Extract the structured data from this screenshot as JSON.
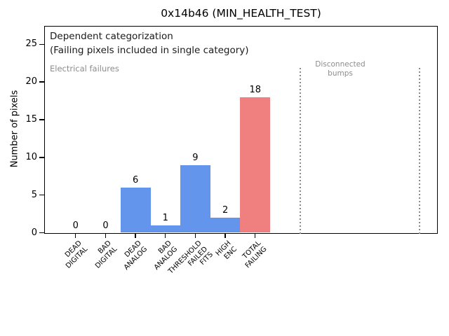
{
  "chart_data": {
    "type": "bar",
    "title": "0x14b46 (MIN_HEALTH_TEST)",
    "xlabel": "",
    "ylabel": "Number of pixels",
    "categories": [
      "DEAD\nDIGITAL",
      "BAD\nDIGITAL",
      "DEAD\nANALOG",
      "BAD\nANALOG",
      "THRESHOLD\nFAILED\nFITS",
      "HIGH\nENC",
      "TOTAL\nFAILING"
    ],
    "values": [
      0,
      0,
      6,
      1,
      9,
      2,
      18
    ],
    "bar_labels": [
      "0",
      "0",
      "6",
      "1",
      "9",
      "2",
      "18"
    ],
    "bar_colors": [
      "#6495ed",
      "#6495ed",
      "#6495ed",
      "#6495ed",
      "#6495ed",
      "#6495ed",
      "#f08080"
    ],
    "yticks": [
      0,
      5,
      10,
      15,
      20,
      25
    ],
    "ylim": [
      0,
      27.4
    ],
    "xlim": [
      -1.05,
      12.1
    ],
    "grid": false,
    "legend": null,
    "annotations": [
      {
        "id": "dependent-categorization",
        "text": "Dependent categorization\n(Failing pixels included in single category)",
        "color": "#1a1a1a"
      },
      {
        "id": "electrical-failures",
        "text": "Electrical failures",
        "color": "#8c8c8c"
      },
      {
        "id": "disconnected-bumps",
        "text": "Disconnected\nbumps",
        "color": "#8c8c8c"
      }
    ],
    "vlines": {
      "x": [
        7.5,
        11.5
      ],
      "y_range": [
        0,
        21.9
      ],
      "style": "dotted",
      "color": "#8c8c8c"
    }
  }
}
